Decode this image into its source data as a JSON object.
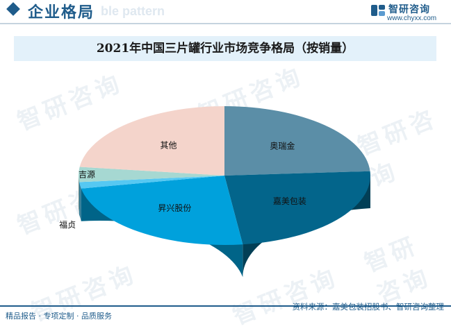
{
  "header": {
    "title": "企业格局",
    "bg_word": "ble pattern"
  },
  "brand": {
    "name": "智研咨询",
    "url": "www.chyxx.com",
    "color": "#1f5c8b"
  },
  "watermark_text": "智研咨询",
  "chart_data": {
    "type": "pie",
    "title": "2021年中国三片罐行业市场竞争格局（按销量）",
    "start_angle_deg": 90,
    "direction": "clockwise",
    "slices": [
      {
        "label": "奥瑞金",
        "value": 24,
        "color": "#5b8ea7"
      },
      {
        "label": "嘉美包装",
        "value": 24,
        "color": "#03658b"
      },
      {
        "label": "昇兴股份",
        "value": 24,
        "color": "#00a1dc"
      },
      {
        "label": "福贞",
        "value": 1.5,
        "color": "#56c8f2"
      },
      {
        "label": "吉源",
        "value": 3.5,
        "color": "#a6d8d2"
      },
      {
        "label": "其他",
        "value": 23,
        "color": "#f4d4cb"
      }
    ]
  },
  "footer": {
    "left": "精品报告 · 专项定制 · 品质服务",
    "right": "资料来源：嘉美包装招股书、智研咨询整理"
  }
}
